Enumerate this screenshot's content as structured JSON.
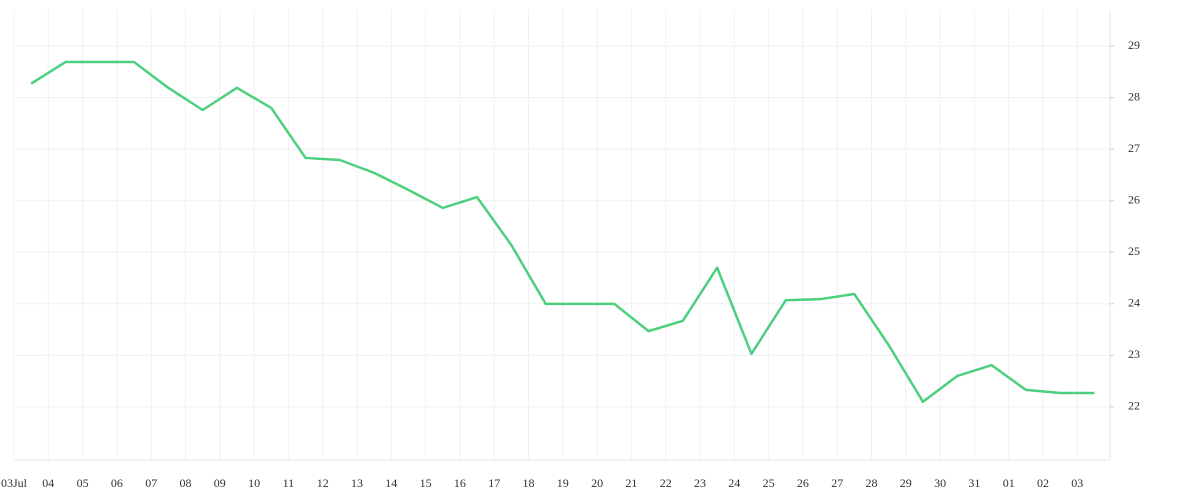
{
  "chart_data": {
    "type": "line",
    "categories": [
      "03Jul",
      "04",
      "05",
      "06",
      "07",
      "08",
      "09",
      "10",
      "11",
      "12",
      "13",
      "14",
      "15",
      "16",
      "17",
      "18",
      "19",
      "20",
      "21",
      "22",
      "23",
      "24",
      "25",
      "26",
      "27",
      "28",
      "29",
      "30",
      "31",
      "01",
      "02",
      "03"
    ],
    "values": [
      28.27,
      28.69,
      28.69,
      28.69,
      28.19,
      27.76,
      28.19,
      27.8,
      26.83,
      26.79,
      26.54,
      26.21,
      25.86,
      26.07,
      25.14,
      24.0,
      24.0,
      24.0,
      23.47,
      23.67,
      24.7,
      23.03,
      24.07,
      24.09,
      24.19,
      23.2,
      22.1,
      22.6,
      22.81,
      22.33,
      22.27,
      22.27
    ],
    "color": "#4cd07d",
    "ylim": [
      20.97,
      29.7
    ],
    "yticks": [
      22,
      23,
      24,
      25,
      26,
      27,
      28,
      29
    ],
    "grid": true
  }
}
